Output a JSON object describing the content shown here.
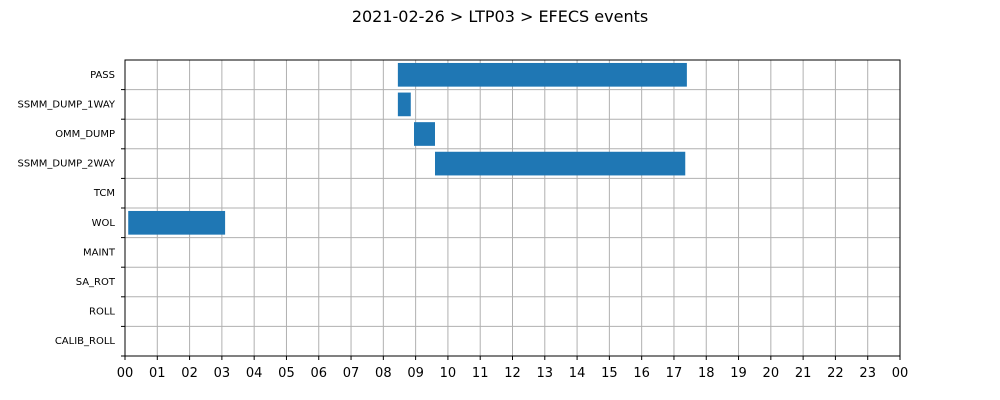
{
  "colors": {
    "bar": "#1f77b4",
    "grid": "#b0b0b0"
  },
  "chart_data": {
    "type": "bar",
    "orientation": "horizontal-timeline",
    "title": "2021-02-26 > LTP03 > EFECS events",
    "xlabel": "",
    "ylabel": "",
    "x_unit": "hour",
    "xlim": [
      0,
      24
    ],
    "x_tick_labels": [
      "00",
      "01",
      "02",
      "03",
      "04",
      "05",
      "06",
      "07",
      "08",
      "09",
      "10",
      "11",
      "12",
      "13",
      "14",
      "15",
      "16",
      "17",
      "18",
      "19",
      "20",
      "21",
      "22",
      "23",
      "00"
    ],
    "grid": true,
    "categories": [
      "PASS",
      "SSMM_DUMP_1WAY",
      "OMM_DUMP",
      "SSMM_DUMP_2WAY",
      "TCM",
      "WOL",
      "MAINT",
      "SA_ROT",
      "ROLL",
      "CALIB_ROLL"
    ],
    "series": [
      {
        "category": "PASS",
        "start": 8.45,
        "end": 17.4
      },
      {
        "category": "SSMM_DUMP_1WAY",
        "start": 8.45,
        "end": 8.85
      },
      {
        "category": "OMM_DUMP",
        "start": 8.95,
        "end": 9.6
      },
      {
        "category": "SSMM_DUMP_2WAY",
        "start": 9.6,
        "end": 17.35
      },
      {
        "category": "WOL",
        "start": 0.1,
        "end": 3.1
      }
    ]
  }
}
